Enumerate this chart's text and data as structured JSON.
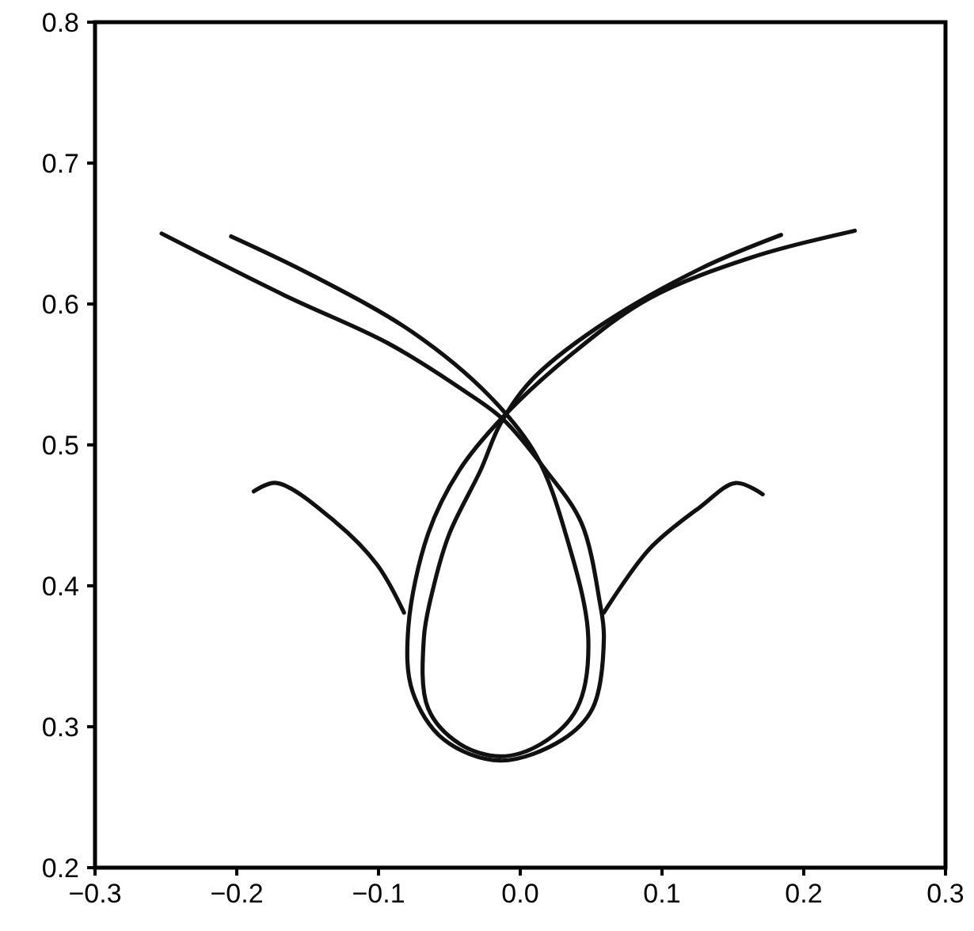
{
  "chart_data": {
    "type": "line",
    "xlim": [
      -0.3,
      0.3
    ],
    "xticks": [
      {
        "value": -0.3,
        "label": "−0.3"
      },
      {
        "value": -0.2,
        "label": "−0.2"
      },
      {
        "value": -0.1,
        "label": "−0.1"
      },
      {
        "value": 0,
        "label": "0.0"
      },
      {
        "value": 0.1,
        "label": "0.1"
      },
      {
        "value": 0.2,
        "label": "0.2"
      },
      {
        "value": 0.3,
        "label": "0.3"
      }
    ],
    "ylim": [
      0.2,
      0.8
    ],
    "yticks": [
      {
        "value": 0.2,
        "label": "0.2"
      },
      {
        "value": 0.3,
        "label": "0.3"
      },
      {
        "value": 0.4,
        "label": "0.4"
      },
      {
        "value": 0.5,
        "label": "0.5"
      },
      {
        "value": 0.6,
        "label": "0.6"
      },
      {
        "value": 0.7,
        "label": "0.7"
      },
      {
        "value": 0.8,
        "label": "0.8"
      }
    ],
    "grid": false,
    "marker": "none",
    "line_style": "solid",
    "series": [
      {
        "color": "#111111",
        "x": [
          -0.253,
          -0.166,
          -0.093,
          -0.039,
          -0.012,
          0.018,
          0.043,
          0.056,
          0.059,
          0.051,
          0.03,
          -0.014,
          -0.054,
          -0.076,
          -0.079,
          -0.065,
          -0.043,
          -0.012,
          0.037,
          0.091,
          0.163,
          0.236
        ],
        "values": [
          0.65,
          0.606,
          0.572,
          0.538,
          0.518,
          0.482,
          0.445,
          0.389,
          0.363,
          0.313,
          0.291,
          0.276,
          0.291,
          0.325,
          0.37,
          0.437,
          0.482,
          0.52,
          0.565,
          0.604,
          0.633,
          0.652
        ]
      },
      {
        "color": "#111111",
        "x": [
          -0.204,
          -0.148,
          -0.076,
          -0.022,
          0.011,
          0.032,
          0.048,
          0.04,
          0.015,
          -0.014,
          -0.043,
          -0.065,
          -0.068,
          -0.061,
          -0.05,
          -0.028,
          -0.014,
          0.008,
          0.054,
          0.127,
          0.184
        ],
        "values": [
          0.648,
          0.621,
          0.58,
          0.535,
          0.493,
          0.437,
          0.363,
          0.313,
          0.288,
          0.279,
          0.288,
          0.313,
          0.363,
          0.4,
          0.437,
          0.482,
          0.515,
          0.546,
          0.583,
          0.625,
          0.649
        ]
      },
      {
        "color": "#111111",
        "x": [
          -0.188,
          -0.172,
          -0.13,
          -0.101,
          -0.082
        ],
        "values": [
          0.467,
          0.473,
          0.445,
          0.415,
          0.381
        ]
      },
      {
        "color": "#111111",
        "x": [
          0.059,
          0.091,
          0.127,
          0.152,
          0.171
        ],
        "values": [
          0.381,
          0.426,
          0.456,
          0.473,
          0.465
        ]
      }
    ]
  }
}
